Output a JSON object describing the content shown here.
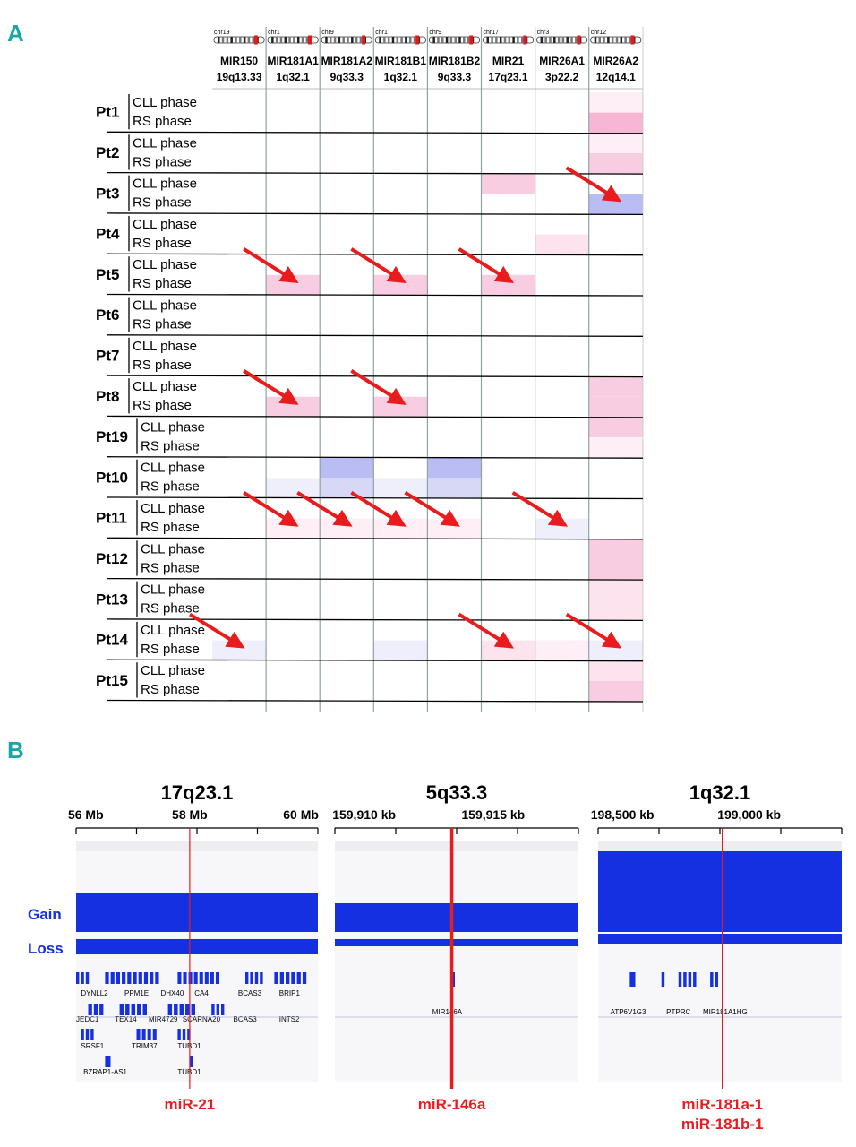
{
  "panel_a": {
    "label": "A",
    "chromosomes": [
      "chr19",
      "chr1",
      "chr9",
      "chr1",
      "chr9",
      "chr17",
      "chr3",
      "chr12"
    ],
    "mirnas": [
      {
        "name": "MIR150",
        "band": "19q13.33"
      },
      {
        "name": "MIR181A1",
        "band": "1q32.1"
      },
      {
        "name": "MIR181A2",
        "band": "9q33.3"
      },
      {
        "name": "MIR181B1",
        "band": "1q32.1"
      },
      {
        "name": "MIR181B2",
        "band": "9q33.3"
      },
      {
        "name": "MIR21",
        "band": "17q23.1"
      },
      {
        "name": "MIR26A1",
        "band": "3p22.2"
      },
      {
        "name": "MIR26A2",
        "band": "12q14.1"
      }
    ],
    "phase_labels": [
      "CLL phase",
      "RS phase"
    ],
    "patients": [
      "Pt1",
      "Pt2",
      "Pt3",
      "Pt4",
      "Pt5",
      "Pt6",
      "Pt7",
      "Pt8",
      "Pt19",
      "Pt10",
      "Pt11",
      "Pt12",
      "Pt13",
      "Pt14",
      "Pt15"
    ],
    "colors": {
      "gain_strong": "#f7b7d4",
      "gain_medium": "#f9cde1",
      "gain_light": "#fce3ee",
      "gain_faint": "#fdeff5",
      "loss_strong": "#b9bdf3",
      "loss_light": "#d6d8f6",
      "loss_faint": "#eeeffb",
      "arrow": "#e81c1c",
      "grid": "#8fa3a3"
    },
    "cells": [
      {
        "p": 0,
        "ph": 0,
        "c": 7,
        "k": "gain_faint"
      },
      {
        "p": 0,
        "ph": 1,
        "c": 7,
        "k": "gain_strong"
      },
      {
        "p": 1,
        "ph": 0,
        "c": 7,
        "k": "gain_faint"
      },
      {
        "p": 1,
        "ph": 1,
        "c": 7,
        "k": "gain_medium"
      },
      {
        "p": 2,
        "ph": 0,
        "c": 5,
        "k": "gain_medium"
      },
      {
        "p": 2,
        "ph": 1,
        "c": 7,
        "k": "loss_strong"
      },
      {
        "p": 3,
        "ph": 1,
        "c": 6,
        "k": "gain_light"
      },
      {
        "p": 4,
        "ph": 1,
        "c": 1,
        "k": "gain_medium"
      },
      {
        "p": 4,
        "ph": 1,
        "c": 3,
        "k": "gain_medium"
      },
      {
        "p": 4,
        "ph": 1,
        "c": 5,
        "k": "gain_medium"
      },
      {
        "p": 7,
        "ph": 0,
        "c": 7,
        "k": "gain_medium"
      },
      {
        "p": 7,
        "ph": 1,
        "c": 1,
        "k": "gain_medium"
      },
      {
        "p": 7,
        "ph": 1,
        "c": 3,
        "k": "gain_medium"
      },
      {
        "p": 7,
        "ph": 1,
        "c": 7,
        "k": "gain_medium"
      },
      {
        "p": 8,
        "ph": 0,
        "c": 7,
        "k": "gain_medium"
      },
      {
        "p": 8,
        "ph": 1,
        "c": 7,
        "k": "gain_faint"
      },
      {
        "p": 9,
        "ph": 0,
        "c": 2,
        "k": "loss_strong"
      },
      {
        "p": 9,
        "ph": 0,
        "c": 4,
        "k": "loss_strong"
      },
      {
        "p": 9,
        "ph": 1,
        "c": 1,
        "k": "loss_faint"
      },
      {
        "p": 9,
        "ph": 1,
        "c": 2,
        "k": "loss_light"
      },
      {
        "p": 9,
        "ph": 1,
        "c": 3,
        "k": "loss_faint"
      },
      {
        "p": 9,
        "ph": 1,
        "c": 4,
        "k": "loss_light"
      },
      {
        "p": 10,
        "ph": 1,
        "c": 1,
        "k": "gain_faint"
      },
      {
        "p": 10,
        "ph": 1,
        "c": 2,
        "k": "gain_faint"
      },
      {
        "p": 10,
        "ph": 1,
        "c": 3,
        "k": "gain_faint"
      },
      {
        "p": 10,
        "ph": 1,
        "c": 4,
        "k": "gain_faint"
      },
      {
        "p": 10,
        "ph": 1,
        "c": 6,
        "k": "loss_faint"
      },
      {
        "p": 11,
        "ph": 0,
        "c": 7,
        "k": "gain_medium"
      },
      {
        "p": 11,
        "ph": 1,
        "c": 7,
        "k": "gain_medium"
      },
      {
        "p": 12,
        "ph": 0,
        "c": 7,
        "k": "gain_light"
      },
      {
        "p": 12,
        "ph": 1,
        "c": 7,
        "k": "gain_light"
      },
      {
        "p": 13,
        "ph": 1,
        "c": 0,
        "k": "loss_faint"
      },
      {
        "p": 13,
        "ph": 1,
        "c": 3,
        "k": "loss_faint"
      },
      {
        "p": 13,
        "ph": 1,
        "c": 5,
        "k": "gain_light"
      },
      {
        "p": 13,
        "ph": 1,
        "c": 6,
        "k": "gain_faint"
      },
      {
        "p": 13,
        "ph": 1,
        "c": 7,
        "k": "loss_faint"
      },
      {
        "p": 14,
        "ph": 0,
        "c": 7,
        "k": "gain_light"
      },
      {
        "p": 14,
        "ph": 1,
        "c": 7,
        "k": "gain_medium"
      }
    ],
    "arrows": [
      {
        "p": 2,
        "c": 7
      },
      {
        "p": 4,
        "c": 1
      },
      {
        "p": 4,
        "c": 3
      },
      {
        "p": 4,
        "c": 5
      },
      {
        "p": 7,
        "c": 1
      },
      {
        "p": 7,
        "c": 3
      },
      {
        "p": 10,
        "c": 1
      },
      {
        "p": 10,
        "c": 2
      },
      {
        "p": 10,
        "c": 3
      },
      {
        "p": 10,
        "c": 4
      },
      {
        "p": 10,
        "c": 6
      },
      {
        "p": 13,
        "c": 0
      },
      {
        "p": 13,
        "c": 5
      },
      {
        "p": 13,
        "c": 7
      }
    ]
  },
  "panel_b": {
    "label": "B",
    "gain_label": "Gain",
    "loss_label": "Loss",
    "colors": {
      "coverage": "#1530e0",
      "marker": "#e81c1c",
      "gene": "#1530e0",
      "label": "#1530e0"
    },
    "tracks": [
      {
        "band": "17q23.1",
        "ticks": [
          "56 Mb",
          "58 Mb",
          "60 Mb"
        ],
        "genes": [
          [
            "DYNLL2",
            "PPM1E",
            "DHX40",
            "CA4",
            "BCAS3",
            "BRIP1"
          ],
          [
            "JEDC1",
            "TEX14",
            "MIR4729",
            "SCARNA20",
            "BCAS3",
            "INTS2"
          ],
          [
            "SRSF1",
            "TRIM37",
            "TUBD1"
          ],
          [
            "BZRAP1-AS1",
            "TUBD1"
          ]
        ],
        "marker_label": [
          "miR-21"
        ]
      },
      {
        "band": "5q33.3",
        "ticks": [
          "159,910 kb",
          "159,915 kb"
        ],
        "genes": [
          [
            "MIR146A"
          ]
        ],
        "marker_label": [
          "miR-146a"
        ]
      },
      {
        "band": "1q32.1",
        "ticks": [
          "198,500 kb",
          "199,000 kb"
        ],
        "genes": [
          [
            "ATP6V1G3",
            "PTPRC",
            "MIR181A1HG"
          ]
        ],
        "marker_label": [
          "miR-181a-1",
          "miR-181b-1"
        ]
      }
    ]
  }
}
